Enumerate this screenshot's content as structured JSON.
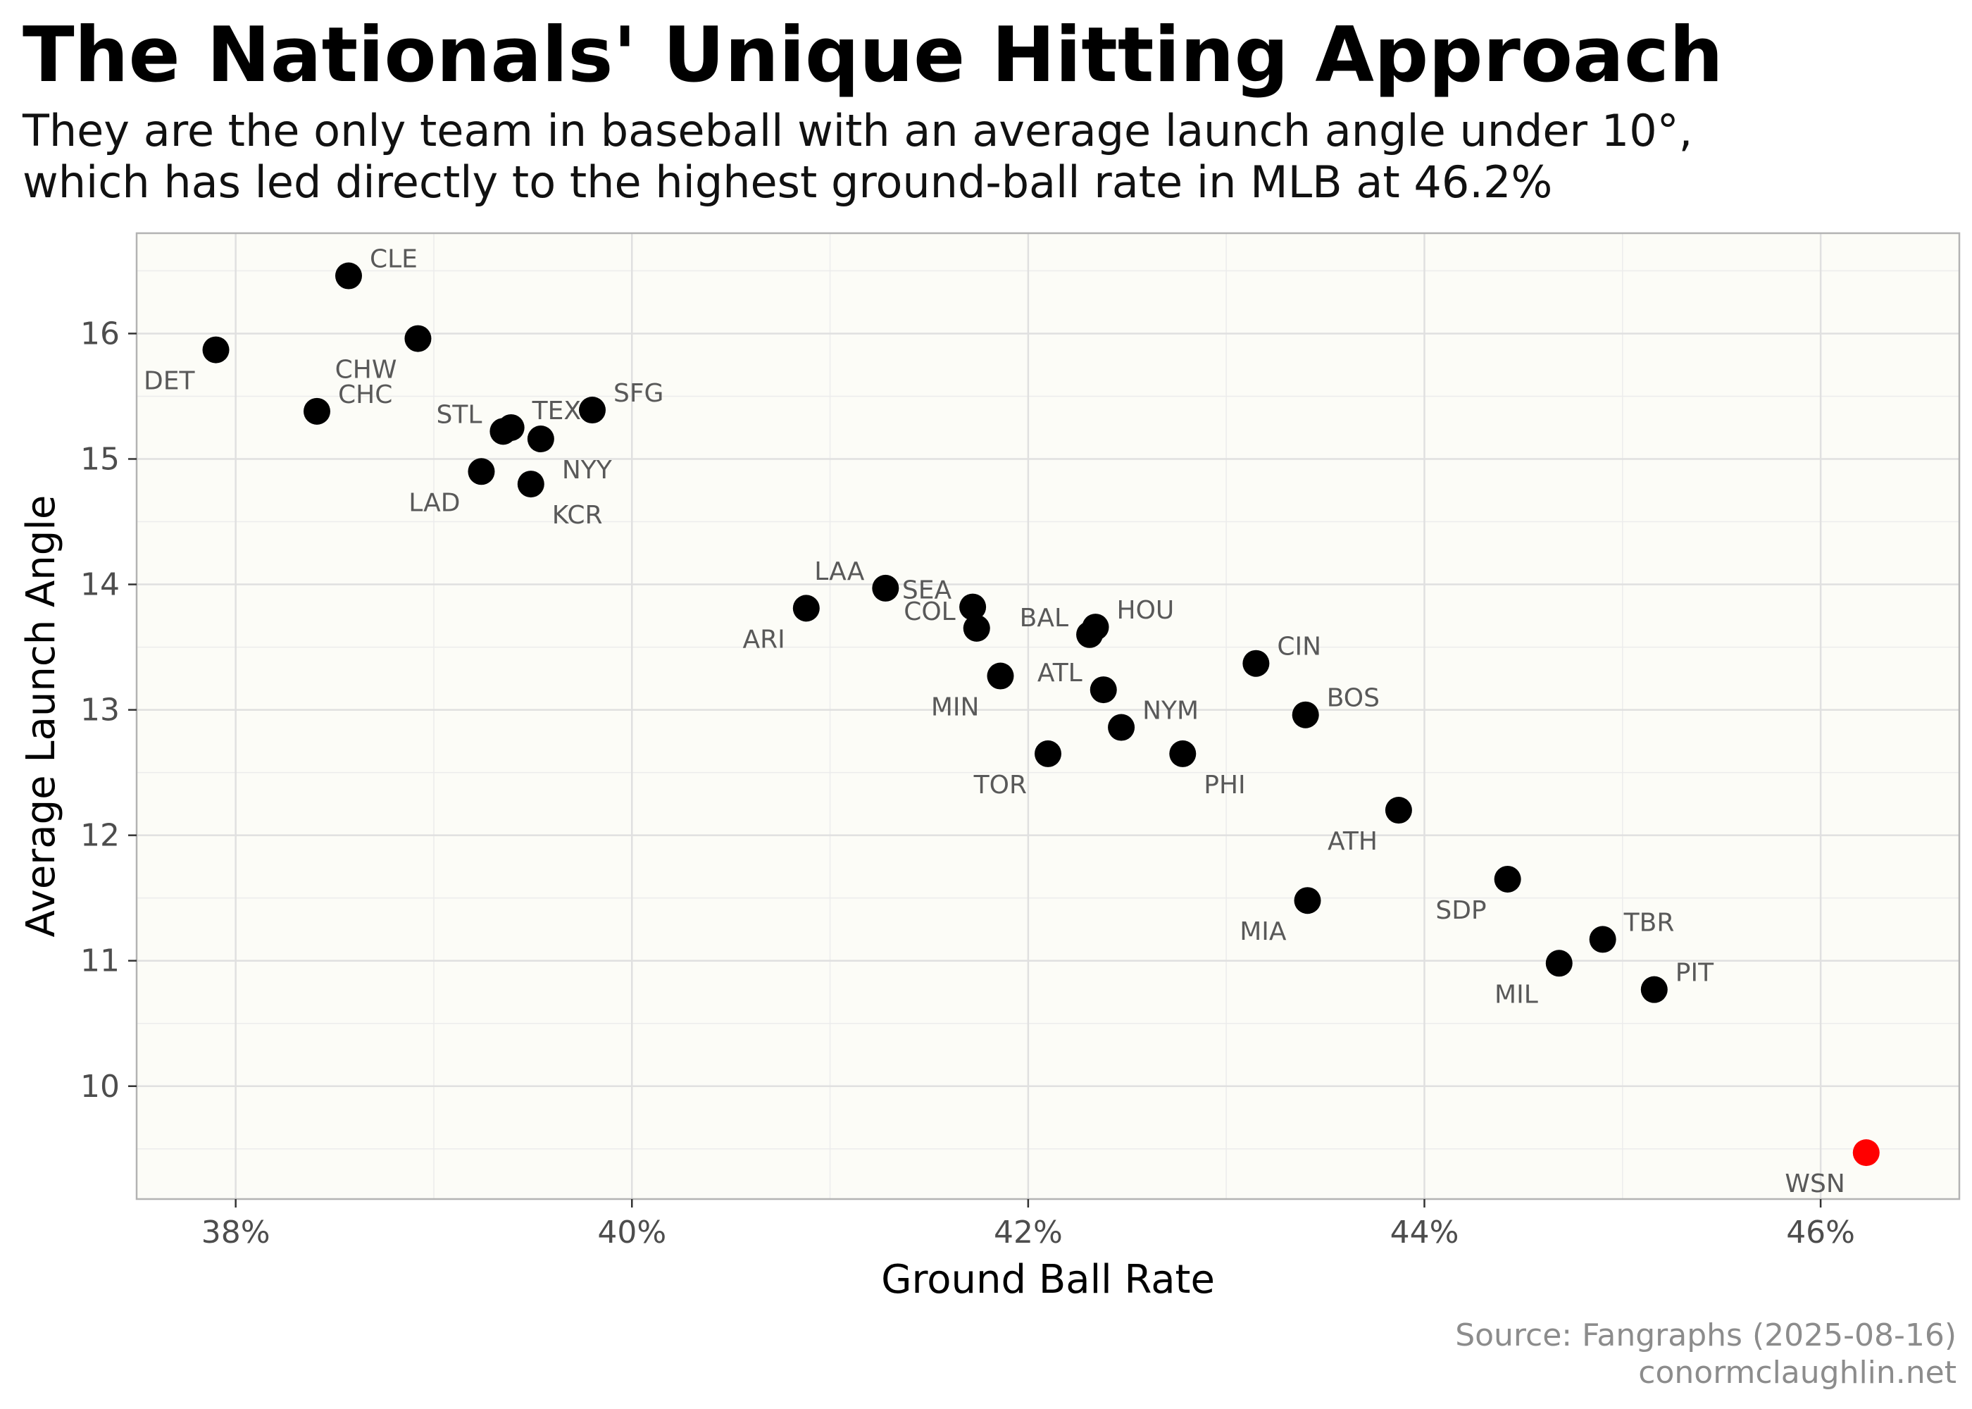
{
  "header": {
    "title": "The Nationals' Unique Hitting Approach",
    "subtitle_line1": "They are the only team in baseball with an average launch angle under 10°,",
    "subtitle_line2": "which has led directly to the highest ground-ball rate in MLB at 46.2%"
  },
  "caption": {
    "source": "Source: Fangraphs (2025-08-16)",
    "site": "conormclaughlin.net"
  },
  "colors": {
    "panel_background": "#fcfcf7",
    "point": "#000000",
    "highlight_point": "#ff0000",
    "label_text": "#595959",
    "grid": "#e0e0e0"
  },
  "chart_data": {
    "type": "scatter",
    "xlabel": "Ground Ball Rate",
    "ylabel": "Average Launch Angle",
    "xlim": [
      37.5,
      46.7
    ],
    "ylim": [
      9.1,
      16.8
    ],
    "x_ticks": [
      38,
      40,
      42,
      44,
      46
    ],
    "x_tick_labels": [
      "38%",
      "40%",
      "42%",
      "44%",
      "46%"
    ],
    "y_ticks": [
      10,
      11,
      12,
      13,
      14,
      15,
      16
    ],
    "y_tick_labels": [
      "10",
      "11",
      "12",
      "13",
      "14",
      "15",
      "16"
    ],
    "grid": true,
    "highlight": "WSN",
    "points": [
      {
        "team": "CLE",
        "x": 38.57,
        "y": 16.46
      },
      {
        "team": "DET",
        "x": 37.9,
        "y": 15.87
      },
      {
        "team": "CHW",
        "x": 38.92,
        "y": 15.96
      },
      {
        "team": "CHC",
        "x": 38.41,
        "y": 15.38
      },
      {
        "team": "SFG",
        "x": 39.8,
        "y": 15.39
      },
      {
        "team": "TEX",
        "x": 39.39,
        "y": 15.25
      },
      {
        "team": "STL",
        "x": 39.35,
        "y": 15.22
      },
      {
        "team": "NYY",
        "x": 39.54,
        "y": 15.16
      },
      {
        "team": "LAD",
        "x": 39.24,
        "y": 14.9
      },
      {
        "team": "KCR",
        "x": 39.49,
        "y": 14.8
      },
      {
        "team": "LAA",
        "x": 41.28,
        "y": 13.97
      },
      {
        "team": "ARI",
        "x": 40.88,
        "y": 13.81
      },
      {
        "team": "SEA",
        "x": 41.72,
        "y": 13.82
      },
      {
        "team": "COL",
        "x": 41.74,
        "y": 13.65
      },
      {
        "team": "HOU",
        "x": 42.34,
        "y": 13.66
      },
      {
        "team": "BAL",
        "x": 42.31,
        "y": 13.6
      },
      {
        "team": "MIN",
        "x": 41.86,
        "y": 13.27
      },
      {
        "team": "ATL",
        "x": 42.38,
        "y": 13.16
      },
      {
        "team": "CIN",
        "x": 43.15,
        "y": 13.37
      },
      {
        "team": "BOS",
        "x": 43.4,
        "y": 12.96
      },
      {
        "team": "NYM",
        "x": 42.47,
        "y": 12.86
      },
      {
        "team": "TOR",
        "x": 42.1,
        "y": 12.65
      },
      {
        "team": "PHI",
        "x": 42.78,
        "y": 12.65
      },
      {
        "team": "ATH",
        "x": 43.87,
        "y": 12.2
      },
      {
        "team": "MIA",
        "x": 43.41,
        "y": 11.48
      },
      {
        "team": "SDP",
        "x": 44.42,
        "y": 11.65
      },
      {
        "team": "TBR",
        "x": 44.9,
        "y": 11.17
      },
      {
        "team": "MIL",
        "x": 44.68,
        "y": 10.98
      },
      {
        "team": "PIT",
        "x": 45.16,
        "y": 10.77
      },
      {
        "team": "WSN",
        "x": 46.23,
        "y": 9.47
      }
    ]
  }
}
